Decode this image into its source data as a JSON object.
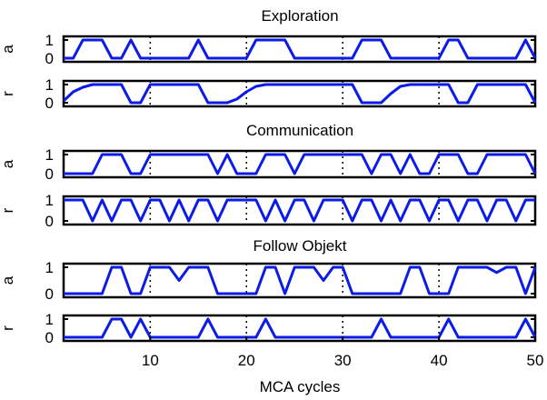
{
  "chart_data": {
    "type": "line",
    "xlabel": "MCA cycles",
    "xlim": [
      1,
      50
    ],
    "xticks": [
      10,
      20,
      30,
      40,
      50
    ],
    "yticks": [
      0,
      1
    ],
    "grid": "vertical dotted lines at x ticks",
    "line_color": "#0b1be8",
    "groups": [
      {
        "title": "Exploration",
        "panels": [
          {
            "ylabel": "a",
            "ylim": [
              0,
              1
            ],
            "x": [
              1,
              2,
              3,
              4,
              5,
              6,
              7,
              8,
              9,
              10,
              11,
              12,
              13,
              14,
              15,
              16,
              17,
              18,
              19,
              20,
              21,
              22,
              23,
              24,
              25,
              26,
              27,
              28,
              29,
              30,
              31,
              32,
              33,
              34,
              35,
              36,
              37,
              38,
              39,
              40,
              41,
              42,
              43,
              44,
              45,
              46,
              47,
              48,
              49,
              50
            ],
            "y": [
              0,
              0,
              1,
              1,
              1,
              0,
              0,
              1,
              0,
              0,
              0,
              0,
              0,
              0,
              1,
              0,
              0,
              0,
              0,
              0,
              1,
              1,
              1,
              1,
              0,
              0,
              0,
              0,
              0,
              0,
              0,
              1,
              1,
              1,
              0,
              0,
              0,
              0,
              0,
              0,
              1,
              1,
              0,
              0,
              0,
              0,
              0,
              0,
              1,
              0
            ]
          },
          {
            "ylabel": "r",
            "ylim": [
              0,
              1
            ],
            "x": [
              1,
              2,
              3,
              4,
              5,
              6,
              7,
              8,
              9,
              10,
              11,
              12,
              13,
              14,
              15,
              16,
              17,
              18,
              19,
              20,
              21,
              22,
              23,
              24,
              25,
              26,
              27,
              28,
              29,
              30,
              31,
              32,
              33,
              34,
              35,
              36,
              37,
              38,
              39,
              40,
              41,
              42,
              43,
              44,
              45,
              46,
              47,
              48,
              49,
              50
            ],
            "y": [
              0.1,
              0.6,
              0.85,
              1,
              1,
              1,
              1,
              0,
              0,
              1,
              1,
              1,
              1,
              1,
              1,
              0,
              0,
              0,
              0.2,
              0.6,
              0.9,
              1,
              1,
              1,
              1,
              1,
              1,
              1,
              1,
              1,
              1,
              0,
              0,
              0,
              0.5,
              0.9,
              1,
              1,
              1,
              1,
              1,
              0,
              0,
              1,
              1,
              1,
              1,
              1,
              1,
              0
            ]
          }
        ]
      },
      {
        "title": "Communication",
        "panels": [
          {
            "ylabel": "a",
            "ylim": [
              0,
              1
            ],
            "x": [
              1,
              2,
              3,
              4,
              5,
              6,
              7,
              8,
              9,
              10,
              11,
              12,
              13,
              14,
              15,
              16,
              17,
              18,
              19,
              20,
              21,
              22,
              23,
              24,
              25,
              26,
              27,
              28,
              29,
              30,
              31,
              32,
              33,
              34,
              35,
              36,
              37,
              38,
              39,
              40,
              41,
              42,
              43,
              44,
              45,
              46,
              47,
              48,
              49,
              50
            ],
            "y": [
              0,
              0,
              0,
              0,
              1,
              1,
              1,
              0,
              0,
              1,
              1,
              1,
              1,
              1,
              1,
              1,
              0,
              1,
              0,
              0,
              0,
              1,
              1,
              1,
              0,
              1,
              1,
              1,
              1,
              1,
              1,
              1,
              0,
              1,
              1,
              0,
              1,
              0,
              0,
              1,
              1,
              1,
              0,
              0,
              1,
              1,
              1,
              1,
              1,
              0
            ]
          },
          {
            "ylabel": "r",
            "ylim": [
              0,
              1
            ],
            "x": [
              1,
              2,
              3,
              4,
              5,
              6,
              7,
              8,
              9,
              10,
              11,
              12,
              13,
              14,
              15,
              16,
              17,
              18,
              19,
              20,
              21,
              22,
              23,
              24,
              25,
              26,
              27,
              28,
              29,
              30,
              31,
              32,
              33,
              34,
              35,
              36,
              37,
              38,
              39,
              40,
              41,
              42,
              43,
              44,
              45,
              46,
              47,
              48,
              49,
              50
            ],
            "y": [
              1,
              1,
              1,
              0,
              1,
              0,
              1,
              1,
              0,
              1,
              1,
              0,
              1,
              0,
              1,
              1,
              0,
              1,
              1,
              1,
              1,
              0,
              1,
              0,
              1,
              1,
              0,
              1,
              1,
              1,
              0,
              1,
              1,
              0,
              1,
              0,
              1,
              1,
              0,
              1,
              1,
              0,
              1,
              1,
              0,
              1,
              1,
              0,
              1,
              1
            ]
          }
        ]
      },
      {
        "title": "Follow Objekt",
        "panels": [
          {
            "ylabel": "a",
            "ylim": [
              0,
              1
            ],
            "x": [
              1,
              2,
              3,
              4,
              5,
              6,
              7,
              8,
              9,
              10,
              11,
              12,
              13,
              14,
              15,
              16,
              17,
              18,
              19,
              20,
              21,
              22,
              23,
              24,
              25,
              26,
              27,
              28,
              29,
              30,
              31,
              32,
              33,
              34,
              35,
              36,
              37,
              38,
              39,
              40,
              41,
              42,
              43,
              44,
              45,
              46,
              47,
              48,
              49,
              50
            ],
            "y": [
              0,
              0,
              0,
              0,
              0,
              1,
              1,
              0,
              0,
              1,
              1,
              1,
              0.5,
              1,
              1,
              1,
              0,
              0,
              0,
              0,
              0,
              1,
              1,
              0,
              1,
              1,
              1,
              0.5,
              1,
              1,
              0,
              0,
              0,
              0,
              0,
              0,
              1,
              1,
              0,
              0,
              0,
              1,
              1,
              1,
              1,
              0.8,
              1,
              1,
              0,
              1
            ]
          },
          {
            "ylabel": "r",
            "ylim": [
              0,
              1
            ],
            "x": [
              1,
              2,
              3,
              4,
              5,
              6,
              7,
              8,
              9,
              10,
              11,
              12,
              13,
              14,
              15,
              16,
              17,
              18,
              19,
              20,
              21,
              22,
              23,
              24,
              25,
              26,
              27,
              28,
              29,
              30,
              31,
              32,
              33,
              34,
              35,
              36,
              37,
              38,
              39,
              40,
              41,
              42,
              43,
              44,
              45,
              46,
              47,
              48,
              49,
              50
            ],
            "y": [
              0,
              0,
              0,
              0,
              0,
              1,
              1,
              0,
              1,
              0,
              0,
              0,
              0,
              0,
              0,
              1,
              0,
              0,
              0,
              0,
              0,
              1,
              0,
              0,
              0,
              0,
              0,
              0,
              0,
              0,
              0,
              0,
              0,
              1,
              0,
              0,
              0,
              0,
              0,
              0,
              1,
              0,
              0,
              0,
              0,
              0,
              0,
              0,
              1,
              0
            ]
          }
        ]
      }
    ]
  }
}
